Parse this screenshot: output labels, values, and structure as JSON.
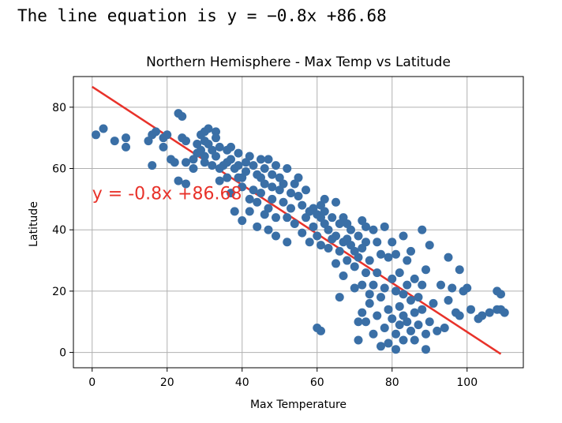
{
  "output": {
    "text": "The line equation is y = −0.8x +86.68"
  },
  "chart_data": {
    "type": "scatter",
    "title": "Northern Hemisphere - Max Temp vs Latitude",
    "xlabel": "Max Temperature",
    "ylabel": "Latitude",
    "xlim": [
      -5,
      115
    ],
    "ylim": [
      -5,
      90
    ],
    "xticks": [
      0,
      20,
      40,
      60,
      80,
      100
    ],
    "yticks": [
      0,
      20,
      40,
      60,
      80
    ],
    "grid": true,
    "point_color": "#3a6fa6",
    "line_color": "#e8322a",
    "regression": {
      "slope": -0.8,
      "intercept": 86.68,
      "x_range": [
        0,
        109
      ]
    },
    "annotation": {
      "text": "y = -0.8x +86.68",
      "x": 0,
      "y": 50
    },
    "points": [
      [
        1,
        71
      ],
      [
        3,
        73
      ],
      [
        6,
        69
      ],
      [
        9,
        70
      ],
      [
        9,
        67
      ],
      [
        15,
        69
      ],
      [
        16,
        61
      ],
      [
        16,
        71
      ],
      [
        17,
        72
      ],
      [
        19,
        67
      ],
      [
        19,
        70
      ],
      [
        20,
        71
      ],
      [
        21,
        63
      ],
      [
        22,
        62
      ],
      [
        23,
        78
      ],
      [
        24,
        77
      ],
      [
        24,
        70
      ],
      [
        25,
        69
      ],
      [
        25,
        62
      ],
      [
        23,
        56
      ],
      [
        25,
        55
      ],
      [
        27,
        60
      ],
      [
        27,
        63
      ],
      [
        28,
        65
      ],
      [
        28,
        68
      ],
      [
        29,
        71
      ],
      [
        29,
        66
      ],
      [
        30,
        72
      ],
      [
        30,
        69
      ],
      [
        30,
        64
      ],
      [
        30,
        62
      ],
      [
        31,
        73
      ],
      [
        31,
        68
      ],
      [
        32,
        66
      ],
      [
        32,
        61
      ],
      [
        33,
        72
      ],
      [
        33,
        70
      ],
      [
        33,
        64
      ],
      [
        34,
        67
      ],
      [
        34,
        60
      ],
      [
        34,
        56
      ],
      [
        35,
        61
      ],
      [
        36,
        66
      ],
      [
        36,
        62
      ],
      [
        36,
        57
      ],
      [
        37,
        63
      ],
      [
        37,
        67
      ],
      [
        37,
        52
      ],
      [
        38,
        46
      ],
      [
        38,
        60
      ],
      [
        39,
        65
      ],
      [
        39,
        61
      ],
      [
        39,
        57
      ],
      [
        40,
        43
      ],
      [
        40,
        57
      ],
      [
        40,
        54
      ],
      [
        41,
        59
      ],
      [
        41,
        62
      ],
      [
        42,
        50
      ],
      [
        42,
        46
      ],
      [
        42,
        64
      ],
      [
        43,
        61
      ],
      [
        43,
        53
      ],
      [
        44,
        49
      ],
      [
        44,
        41
      ],
      [
        45,
        63
      ],
      [
        45,
        57
      ],
      [
        45,
        52
      ],
      [
        46,
        55
      ],
      [
        46,
        60
      ],
      [
        47,
        47
      ],
      [
        47,
        40
      ],
      [
        47,
        63
      ],
      [
        48,
        58
      ],
      [
        48,
        54
      ],
      [
        48,
        50
      ],
      [
        49,
        61
      ],
      [
        49,
        44
      ],
      [
        49,
        38
      ],
      [
        50,
        57
      ],
      [
        50,
        53
      ],
      [
        51,
        55
      ],
      [
        51,
        49
      ],
      [
        52,
        60
      ],
      [
        52,
        44
      ],
      [
        52,
        36
      ],
      [
        53,
        52
      ],
      [
        53,
        47
      ],
      [
        54,
        55
      ],
      [
        54,
        42
      ],
      [
        55,
        51
      ],
      [
        55,
        57
      ],
      [
        56,
        48
      ],
      [
        56,
        39
      ],
      [
        57,
        53
      ],
      [
        57,
        44
      ],
      [
        58,
        46
      ],
      [
        58,
        36
      ],
      [
        59,
        41
      ],
      [
        59,
        47
      ],
      [
        60,
        45
      ],
      [
        60,
        38
      ],
      [
        61,
        48
      ],
      [
        61,
        44
      ],
      [
        61,
        35
      ],
      [
        62,
        46
      ],
      [
        62,
        42
      ],
      [
        62,
        50
      ],
      [
        63,
        40
      ],
      [
        63,
        34
      ],
      [
        64,
        44
      ],
      [
        64,
        37
      ],
      [
        65,
        38
      ],
      [
        65,
        49
      ],
      [
        65,
        29
      ],
      [
        66,
        42
      ],
      [
        66,
        33
      ],
      [
        66,
        18
      ],
      [
        67,
        44
      ],
      [
        67,
        36
      ],
      [
        67,
        25
      ],
      [
        68,
        37
      ],
      [
        68,
        30
      ],
      [
        68,
        42
      ],
      [
        69,
        35
      ],
      [
        69,
        40
      ],
      [
        70,
        33
      ],
      [
        70,
        28
      ],
      [
        70,
        21
      ],
      [
        71,
        31
      ],
      [
        71,
        38
      ],
      [
        71,
        10
      ],
      [
        71,
        4
      ],
      [
        72,
        43
      ],
      [
        72,
        34
      ],
      [
        72,
        22
      ],
      [
        72,
        13
      ],
      [
        73,
        36
      ],
      [
        73,
        41
      ],
      [
        73,
        26
      ],
      [
        73,
        10
      ],
      [
        74,
        30
      ],
      [
        74,
        19
      ],
      [
        74,
        16
      ],
      [
        75,
        40
      ],
      [
        75,
        22
      ],
      [
        75,
        6
      ],
      [
        76,
        12
      ],
      [
        76,
        36
      ],
      [
        76,
        26
      ],
      [
        77,
        32
      ],
      [
        77,
        2
      ],
      [
        77,
        18
      ],
      [
        78,
        21
      ],
      [
        78,
        8
      ],
      [
        78,
        41
      ],
      [
        79,
        31
      ],
      [
        79,
        14
      ],
      [
        79,
        3
      ],
      [
        80,
        24
      ],
      [
        80,
        36
      ],
      [
        80,
        11
      ],
      [
        81,
        20
      ],
      [
        81,
        32
      ],
      [
        81,
        6
      ],
      [
        81,
        1
      ],
      [
        82,
        15
      ],
      [
        82,
        26
      ],
      [
        82,
        9
      ],
      [
        83,
        19
      ],
      [
        83,
        38
      ],
      [
        83,
        4
      ],
      [
        83,
        12
      ],
      [
        84,
        22
      ],
      [
        84,
        10
      ],
      [
        84,
        30
      ],
      [
        85,
        17
      ],
      [
        85,
        7
      ],
      [
        85,
        33
      ],
      [
        86,
        13
      ],
      [
        86,
        4
      ],
      [
        86,
        24
      ],
      [
        87,
        18
      ],
      [
        87,
        9
      ],
      [
        88,
        22
      ],
      [
        88,
        40
      ],
      [
        88,
        14
      ],
      [
        89,
        27
      ],
      [
        89,
        6
      ],
      [
        89,
        1
      ],
      [
        90,
        35
      ],
      [
        90,
        10
      ],
      [
        91,
        16
      ],
      [
        92,
        7
      ],
      [
        93,
        22
      ],
      [
        94,
        8
      ],
      [
        95,
        31
      ],
      [
        95,
        17
      ],
      [
        96,
        21
      ],
      [
        97,
        13
      ],
      [
        98,
        27
      ],
      [
        98,
        12
      ],
      [
        99,
        20
      ],
      [
        100,
        21
      ],
      [
        101,
        14
      ],
      [
        103,
        11
      ],
      [
        104,
        12
      ],
      [
        106,
        13
      ],
      [
        108,
        20
      ],
      [
        108,
        14
      ],
      [
        109,
        19
      ],
      [
        109,
        14
      ],
      [
        110,
        13
      ],
      [
        60,
        8
      ],
      [
        61,
        7
      ],
      [
        58,
        46
      ],
      [
        46,
        45
      ],
      [
        44,
        58
      ]
    ]
  }
}
